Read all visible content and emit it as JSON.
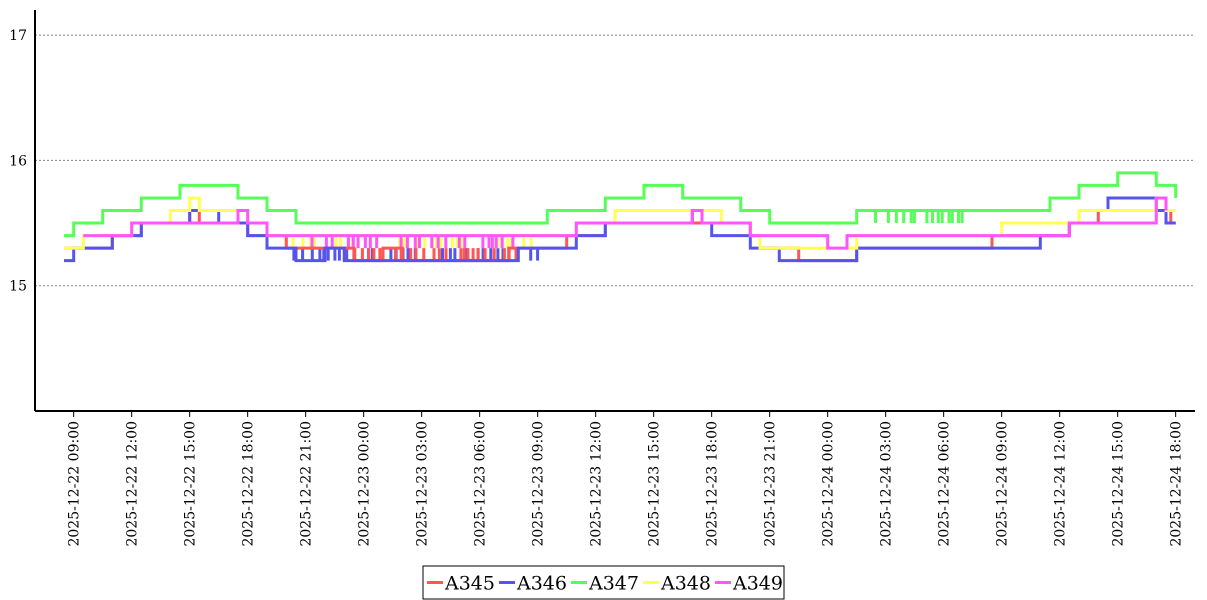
{
  "chart_data": {
    "type": "line",
    "title": "",
    "xlabel": "",
    "ylabel": "",
    "ylim": [
      14,
      17.2
    ],
    "yticks": [
      15,
      16,
      17
    ],
    "grid": "y-dotted",
    "legend_placement": "bottom-center",
    "x_start": "2025-12-22 07:00",
    "x_end": "2025-12-24 19:00",
    "xticks": [
      "2025-12-22 09:00",
      "2025-12-22 12:00",
      "2025-12-22 15:00",
      "2025-12-22 18:00",
      "2025-12-22 21:00",
      "2025-12-23 00:00",
      "2025-12-23 03:00",
      "2025-12-23 06:00",
      "2025-12-23 09:00",
      "2025-12-23 12:00",
      "2025-12-23 15:00",
      "2025-12-23 18:00",
      "2025-12-23 21:00",
      "2025-12-24 00:00",
      "2025-12-24 03:00",
      "2025-12-24 06:00",
      "2025-12-24 09:00",
      "2025-12-24 12:00",
      "2025-12-24 15:00",
      "2025-12-24 18:00"
    ],
    "series": [
      {
        "name": "A345",
        "color": "#ff5555",
        "points": [
          [
            "2025-12-22 08:30",
            15.3
          ],
          [
            "2025-12-22 11:00",
            15.4
          ],
          [
            "2025-12-22 12:30",
            15.5
          ],
          [
            "2025-12-22 14:30",
            15.5
          ],
          [
            "2025-12-22 15:00",
            15.6
          ],
          [
            "2025-12-22 15:30",
            15.5
          ],
          [
            "2025-12-22 17:30",
            15.5
          ],
          [
            "2025-12-22 18:00",
            15.4
          ],
          [
            "2025-12-22 19:00",
            15.4
          ],
          [
            "2025-12-22 20:00",
            15.3
          ],
          [
            "2025-12-22 22:00",
            15.3
          ],
          [
            "2025-12-22 23:30",
            15.2
          ],
          [
            "2025-12-23 01:00",
            15.3
          ],
          [
            "2025-12-23 02:00",
            15.2
          ],
          [
            "2025-12-23 07:00",
            15.2
          ],
          [
            "2025-12-23 07:30",
            15.3
          ],
          [
            "2025-12-23 10:00",
            15.3
          ],
          [
            "2025-12-23 10:30",
            15.4
          ],
          [
            "2025-12-23 12:00",
            15.4
          ],
          [
            "2025-12-23 12:30",
            15.5
          ],
          [
            "2025-12-23 19:30",
            15.5
          ],
          [
            "2025-12-23 20:00",
            15.4
          ],
          [
            "2025-12-23 20:30",
            15.3
          ],
          [
            "2025-12-23 22:00",
            15.3
          ],
          [
            "2025-12-23 22:30",
            15.2
          ],
          [
            "2025-12-24 01:00",
            15.2
          ],
          [
            "2025-12-24 01:30",
            15.3
          ],
          [
            "2025-12-24 08:00",
            15.3
          ],
          [
            "2025-12-24 08:30",
            15.4
          ],
          [
            "2025-12-24 12:00",
            15.4
          ],
          [
            "2025-12-24 12:30",
            15.5
          ],
          [
            "2025-12-24 13:30",
            15.5
          ],
          [
            "2025-12-24 14:00",
            15.6
          ],
          [
            "2025-12-24 17:30",
            15.6
          ],
          [
            "2025-12-24 17:45",
            15.5
          ],
          [
            "2025-12-24 18:00",
            15.5
          ]
        ]
      },
      {
        "name": "A346",
        "color": "#5555ee",
        "points": [
          [
            "2025-12-22 08:30",
            15.2
          ],
          [
            "2025-12-22 09:00",
            15.3
          ],
          [
            "2025-12-22 10:30",
            15.3
          ],
          [
            "2025-12-22 11:00",
            15.4
          ],
          [
            "2025-12-22 12:30",
            15.5
          ],
          [
            "2025-12-22 14:30",
            15.5
          ],
          [
            "2025-12-22 15:00",
            15.6
          ],
          [
            "2025-12-22 16:00",
            15.6
          ],
          [
            "2025-12-22 16:30",
            15.5
          ],
          [
            "2025-12-22 17:30",
            15.5
          ],
          [
            "2025-12-22 18:00",
            15.4
          ],
          [
            "2025-12-22 19:00",
            15.3
          ],
          [
            "2025-12-22 20:00",
            15.3
          ],
          [
            "2025-12-22 20:30",
            15.2
          ],
          [
            "2025-12-22 22:00",
            15.3
          ],
          [
            "2025-12-22 23:00",
            15.2
          ],
          [
            "2025-12-23 08:00",
            15.3
          ],
          [
            "2025-12-23 10:30",
            15.3
          ],
          [
            "2025-12-23 11:00",
            15.4
          ],
          [
            "2025-12-23 12:30",
            15.5
          ],
          [
            "2025-12-23 16:30",
            15.5
          ],
          [
            "2025-12-23 17:00",
            15.6
          ],
          [
            "2025-12-23 17:30",
            15.5
          ],
          [
            "2025-12-23 18:00",
            15.4
          ],
          [
            "2025-12-23 19:30",
            15.4
          ],
          [
            "2025-12-23 20:00",
            15.3
          ],
          [
            "2025-12-23 21:00",
            15.3
          ],
          [
            "2025-12-23 21:30",
            15.2
          ],
          [
            "2025-12-24 01:00",
            15.2
          ],
          [
            "2025-12-24 01:30",
            15.3
          ],
          [
            "2025-12-24 09:00",
            15.3
          ],
          [
            "2025-12-24 10:30",
            15.3
          ],
          [
            "2025-12-24 11:00",
            15.4
          ],
          [
            "2025-12-24 12:00",
            15.4
          ],
          [
            "2025-12-24 12:30",
            15.5
          ],
          [
            "2025-12-24 13:00",
            15.6
          ],
          [
            "2025-12-24 14:30",
            15.7
          ],
          [
            "2025-12-24 16:30",
            15.7
          ],
          [
            "2025-12-24 17:00",
            15.6
          ],
          [
            "2025-12-24 17:30",
            15.5
          ],
          [
            "2025-12-24 18:00",
            15.5
          ]
        ]
      },
      {
        "name": "A347",
        "color": "#55ff55",
        "points": [
          [
            "2025-12-22 08:30",
            15.4
          ],
          [
            "2025-12-22 09:00",
            15.5
          ],
          [
            "2025-12-22 10:00",
            15.5
          ],
          [
            "2025-12-22 10:30",
            15.6
          ],
          [
            "2025-12-22 12:00",
            15.6
          ],
          [
            "2025-12-22 12:30",
            15.7
          ],
          [
            "2025-12-22 14:00",
            15.7
          ],
          [
            "2025-12-22 14:30",
            15.8
          ],
          [
            "2025-12-22 17:00",
            15.8
          ],
          [
            "2025-12-22 17:30",
            15.7
          ],
          [
            "2025-12-22 18:30",
            15.7
          ],
          [
            "2025-12-22 19:00",
            15.6
          ],
          [
            "2025-12-22 20:00",
            15.6
          ],
          [
            "2025-12-22 20:30",
            15.5
          ],
          [
            "2025-12-23 09:00",
            15.5
          ],
          [
            "2025-12-23 09:30",
            15.6
          ],
          [
            "2025-12-23 12:00",
            15.6
          ],
          [
            "2025-12-23 12:30",
            15.7
          ],
          [
            "2025-12-23 14:00",
            15.7
          ],
          [
            "2025-12-23 14:30",
            15.8
          ],
          [
            "2025-12-23 16:00",
            15.8
          ],
          [
            "2025-12-23 16:30",
            15.7
          ],
          [
            "2025-12-23 19:00",
            15.7
          ],
          [
            "2025-12-23 19:30",
            15.6
          ],
          [
            "2025-12-23 20:30",
            15.6
          ],
          [
            "2025-12-23 21:00",
            15.5
          ],
          [
            "2025-12-24 01:00",
            15.5
          ],
          [
            "2025-12-24 01:30",
            15.6
          ],
          [
            "2025-12-24 08:00",
            15.6
          ],
          [
            "2025-12-24 08:30",
            15.6
          ],
          [
            "2025-12-24 11:00",
            15.6
          ],
          [
            "2025-12-24 11:30",
            15.7
          ],
          [
            "2025-12-24 12:30",
            15.7
          ],
          [
            "2025-12-24 13:00",
            15.8
          ],
          [
            "2025-12-24 14:30",
            15.8
          ],
          [
            "2025-12-24 15:00",
            15.9
          ],
          [
            "2025-12-24 16:30",
            15.9
          ],
          [
            "2025-12-24 17:00",
            15.8
          ],
          [
            "2025-12-24 18:00",
            15.8
          ],
          [
            "2025-12-24 18:00",
            15.7
          ]
        ]
      },
      {
        "name": "A348",
        "color": "#ffff55",
        "points": [
          [
            "2025-12-22 08:30",
            15.3
          ],
          [
            "2025-12-22 09:30",
            15.4
          ],
          [
            "2025-12-22 11:30",
            15.4
          ],
          [
            "2025-12-22 12:00",
            15.5
          ],
          [
            "2025-12-22 13:30",
            15.5
          ],
          [
            "2025-12-22 14:00",
            15.6
          ],
          [
            "2025-12-22 14:30",
            15.6
          ],
          [
            "2025-12-22 15:00",
            15.7
          ],
          [
            "2025-12-22 15:30",
            15.6
          ],
          [
            "2025-12-22 17:30",
            15.6
          ],
          [
            "2025-12-22 18:00",
            15.5
          ],
          [
            "2025-12-22 18:30",
            15.5
          ],
          [
            "2025-12-22 19:00",
            15.4
          ],
          [
            "2025-12-23 08:00",
            15.4
          ],
          [
            "2025-12-23 10:30",
            15.4
          ],
          [
            "2025-12-23 11:00",
            15.5
          ],
          [
            "2025-12-23 12:30",
            15.5
          ],
          [
            "2025-12-23 13:00",
            15.6
          ],
          [
            "2025-12-23 17:00",
            15.6
          ],
          [
            "2025-12-23 17:30",
            15.6
          ],
          [
            "2025-12-23 18:30",
            15.5
          ],
          [
            "2025-12-23 19:30",
            15.5
          ],
          [
            "2025-12-23 20:00",
            15.4
          ],
          [
            "2025-12-23 20:30",
            15.3
          ],
          [
            "2025-12-24 01:00",
            15.3
          ],
          [
            "2025-12-24 01:30",
            15.4
          ],
          [
            "2025-12-24 08:30",
            15.4
          ],
          [
            "2025-12-24 09:00",
            15.5
          ],
          [
            "2025-12-24 12:30",
            15.5
          ],
          [
            "2025-12-24 13:00",
            15.6
          ],
          [
            "2025-12-24 16:30",
            15.6
          ],
          [
            "2025-12-24 17:00",
            15.7
          ],
          [
            "2025-12-24 17:30",
            15.6
          ],
          [
            "2025-12-24 18:00",
            15.6
          ]
        ]
      },
      {
        "name": "A349",
        "color": "#ff55ff",
        "points": [
          [
            "2025-12-22 09:30",
            15.4
          ],
          [
            "2025-12-22 11:30",
            15.4
          ],
          [
            "2025-12-22 12:00",
            15.5
          ],
          [
            "2025-12-22 17:00",
            15.5
          ],
          [
            "2025-12-22 17:30",
            15.6
          ],
          [
            "2025-12-22 18:00",
            15.5
          ],
          [
            "2025-12-22 19:00",
            15.4
          ],
          [
            "2025-12-23 09:00",
            15.4
          ],
          [
            "2025-12-23 11:00",
            15.5
          ],
          [
            "2025-12-23 16:30",
            15.5
          ],
          [
            "2025-12-23 17:00",
            15.6
          ],
          [
            "2025-12-23 17:30",
            15.5
          ],
          [
            "2025-12-23 20:00",
            15.4
          ],
          [
            "2025-12-24 00:00",
            15.3
          ],
          [
            "2025-12-24 01:00",
            15.4
          ],
          [
            "2025-12-24 07:30",
            15.4
          ],
          [
            "2025-12-24 08:30",
            15.4
          ],
          [
            "2025-12-24 12:30",
            15.5
          ],
          [
            "2025-12-24 17:00",
            15.7
          ],
          [
            "2025-12-24 17:30",
            15.6
          ]
        ]
      }
    ],
    "noise_bands": [
      {
        "series": "A346",
        "from": "2025-12-22 20:00",
        "to": "2025-12-23 09:00",
        "low": 15.2,
        "high": 15.3
      },
      {
        "series": "A345",
        "from": "2025-12-22 23:00",
        "to": "2025-12-23 08:00",
        "low": 15.2,
        "high": 15.3
      },
      {
        "series": "A348",
        "from": "2025-12-22 20:00",
        "to": "2025-12-23 09:00",
        "low": 15.3,
        "high": 15.4
      },
      {
        "series": "A349",
        "from": "2025-12-22 21:00",
        "to": "2025-12-23 08:00",
        "low": 15.3,
        "high": 15.4
      },
      {
        "series": "A347",
        "from": "2025-12-24 02:00",
        "to": "2025-12-24 07:00",
        "low": 15.5,
        "high": 15.6
      }
    ]
  }
}
